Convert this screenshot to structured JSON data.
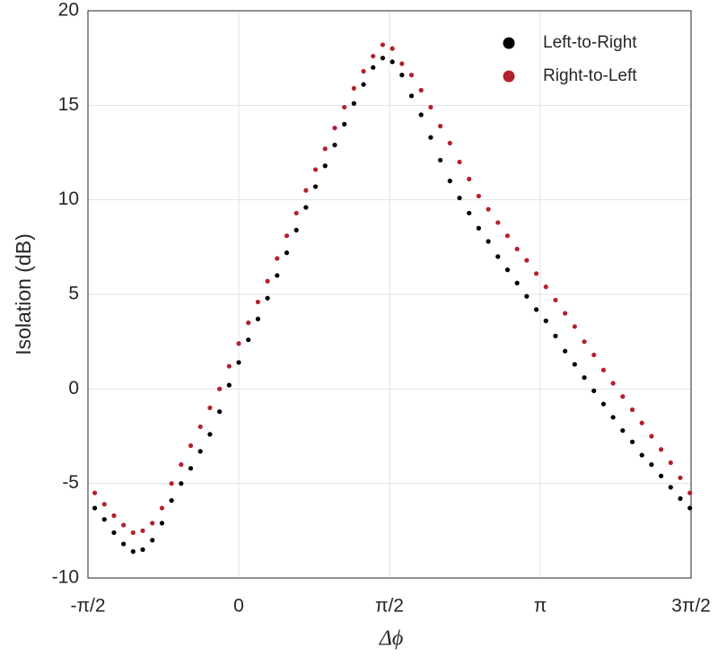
{
  "chart_data": {
    "type": "scatter",
    "xlabel": "Δϕ",
    "ylabel": "Isolation (dB)",
    "xlim": [
      -1.5708,
      4.7124
    ],
    "ylim": [
      -10,
      20
    ],
    "xticks": [
      {
        "value": -1.5708,
        "label": "-π/2"
      },
      0,
      {
        "value": 1.5708,
        "label": "π/2"
      },
      {
        "value": 3.1416,
        "label": "π"
      },
      {
        "value": 4.7124,
        "label": "3π/2"
      }
    ],
    "yticks": [
      -10,
      -5,
      0,
      5,
      10,
      15,
      20
    ],
    "grid": true,
    "legend": "upper-right",
    "x": [
      -1.5,
      -1.4,
      -1.3,
      -1.2,
      -1.1,
      -1.0,
      -0.9,
      -0.8,
      -0.7,
      -0.6,
      -0.5,
      -0.4,
      -0.3,
      -0.2,
      -0.1,
      0,
      0.1,
      0.2,
      0.3,
      0.4,
      0.5,
      0.6,
      0.7,
      0.8,
      0.9,
      1.0,
      1.1,
      1.2,
      1.3,
      1.4,
      1.5,
      1.6,
      1.7,
      1.8,
      1.9,
      2.0,
      2.1,
      2.2,
      2.3,
      2.4,
      2.5,
      2.6,
      2.7,
      2.8,
      2.9,
      3.0,
      3.1,
      3.2,
      3.3,
      3.4,
      3.5,
      3.6,
      3.7,
      3.8,
      3.9,
      4.0,
      4.1,
      4.2,
      4.3,
      4.4,
      4.5,
      4.6,
      4.7
    ],
    "series": [
      {
        "name": "Left-to-Right",
        "color": "#000000",
        "values": [
          -6.3,
          -6.9,
          -7.6,
          -8.2,
          -8.6,
          -8.5,
          -8.0,
          -7.1,
          -5.9,
          -5.0,
          -4.2,
          -3.3,
          -2.4,
          -1.2,
          0.2,
          1.4,
          2.6,
          3.7,
          4.8,
          6.0,
          7.2,
          8.4,
          9.6,
          10.7,
          11.8,
          12.9,
          14.0,
          15.1,
          16.1,
          17.0,
          17.5,
          17.3,
          16.6,
          15.5,
          14.5,
          13.3,
          12.1,
          11.0,
          10.1,
          9.3,
          8.5,
          7.8,
          7.0,
          6.3,
          5.6,
          4.9,
          4.2,
          3.6,
          2.8,
          2.0,
          1.3,
          0.6,
          -0.1,
          -0.8,
          -1.5,
          -2.2,
          -2.8,
          -3.5,
          -4.0,
          -4.6,
          -5.2,
          -5.8,
          -6.3
        ]
      },
      {
        "name": "Right-to-Left",
        "color": "#b5202e",
        "values": [
          -5.5,
          -6.1,
          -6.7,
          -7.2,
          -7.6,
          -7.5,
          -7.1,
          -6.3,
          -5.0,
          -4.0,
          -3.0,
          -2.0,
          -1.0,
          0.0,
          1.2,
          2.4,
          3.5,
          4.6,
          5.7,
          6.9,
          8.1,
          9.3,
          10.5,
          11.6,
          12.7,
          13.8,
          14.9,
          15.9,
          16.8,
          17.6,
          18.2,
          18.0,
          17.2,
          16.6,
          15.8,
          14.9,
          13.9,
          13.0,
          12.0,
          11.1,
          10.2,
          9.5,
          8.8,
          8.1,
          7.4,
          6.8,
          6.1,
          5.4,
          4.7,
          4.0,
          3.3,
          2.5,
          1.8,
          1.0,
          0.3,
          -0.4,
          -1.1,
          -1.8,
          -2.5,
          -3.2,
          -3.9,
          -4.7,
          -5.5
        ]
      }
    ]
  }
}
